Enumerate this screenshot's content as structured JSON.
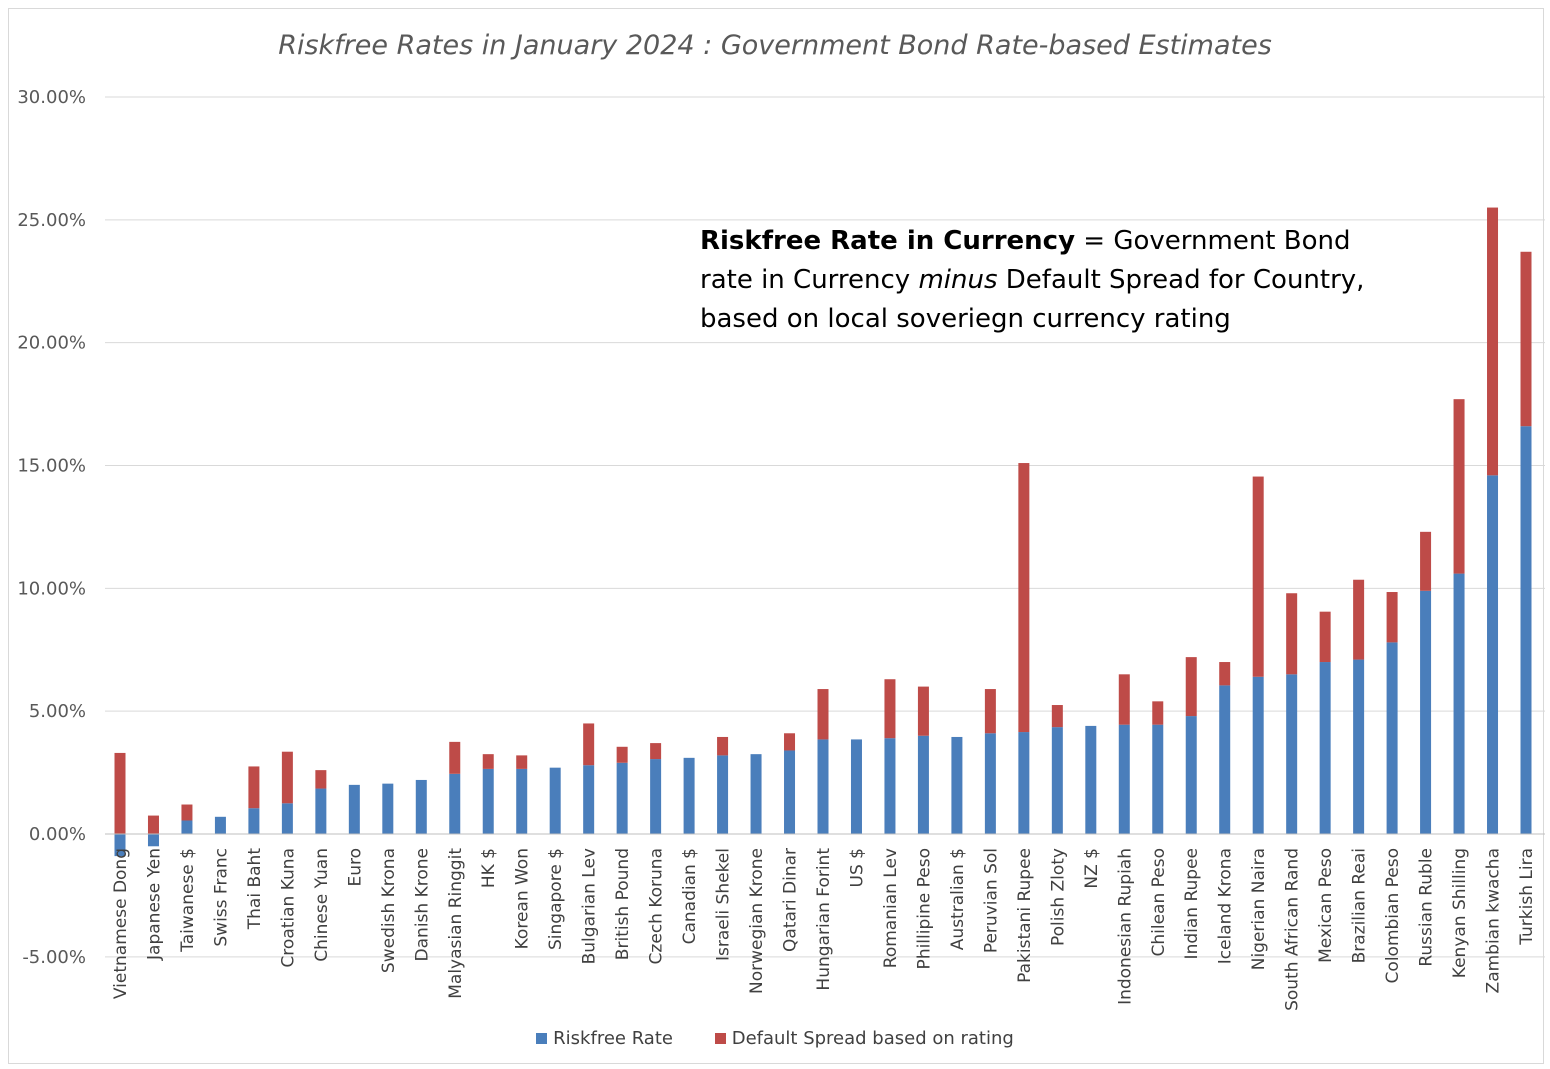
{
  "chart_data": {
    "type": "bar",
    "stacked": true,
    "title": "Riskfree Rates in January 2024 : Government Bond Rate-based Estimates",
    "annotation": {
      "bold": "Riskfree Rate in Currency",
      "part1": " = Government Bond rate in Currency ",
      "italic": "minus",
      "part2": " Default Spread for Country, based on local soveriegn currency rating"
    },
    "ylim": [
      -5,
      30
    ],
    "yticks": [
      -5,
      0,
      5,
      10,
      15,
      20,
      25,
      30
    ],
    "ytick_labels": [
      "-5.00%",
      "0.00%",
      "5.00%",
      "10.00%",
      "15.00%",
      "20.00%",
      "25.00%",
      "30.00%"
    ],
    "grid": true,
    "legend": "bottom",
    "categories": [
      "Vietnamese Dong",
      "Japanese Yen",
      "Taiwanese $",
      "Swiss Franc",
      "Thai Baht",
      "Croatian Kuna",
      "Chinese Yuan",
      "Euro",
      "Swedish Krona",
      "Danish Krone",
      "Malyasian Ringgit",
      "HK $",
      "Korean Won",
      "Singapore $",
      "Bulgarian Lev",
      "British Pound",
      "Czech Koruna",
      "Canadian $",
      "Israeli Shekel",
      "Norwegian Krone",
      "Qatari Dinar",
      "Hungarian Forint",
      "US $",
      "Romanian Lev",
      "Phillipine Peso",
      "Australian $",
      "Peruvian Sol",
      "Pakistani Rupee",
      "Polish Zloty",
      "NZ $",
      "Indonesian Rupiah",
      "Chilean Peso",
      "Indian Rupee",
      "Iceland Krona",
      "Nigerian Naira",
      "South African Rand",
      "Mexican Peso",
      "Brazilian Reai",
      "Colombian Peso",
      "Russian Ruble",
      "Kenyan Shilling",
      "Zambian kwacha",
      "Turkish Lira"
    ],
    "series": [
      {
        "name": "Riskfree Rate",
        "color": "#4a7ebb",
        "values": [
          -0.9,
          -0.5,
          0.55,
          0.7,
          1.05,
          1.25,
          1.85,
          2.0,
          2.05,
          2.2,
          2.45,
          2.65,
          2.65,
          2.7,
          2.8,
          2.9,
          3.05,
          3.1,
          3.2,
          3.25,
          3.4,
          3.85,
          3.85,
          3.9,
          4.0,
          3.95,
          4.1,
          4.15,
          4.35,
          4.4,
          4.45,
          4.45,
          4.8,
          6.05,
          6.4,
          6.5,
          7.0,
          7.1,
          7.8,
          9.9,
          10.6,
          14.6,
          16.6
        ]
      },
      {
        "name": "Default Spread based on rating",
        "color": "#be4b48",
        "values": [
          3.3,
          0.75,
          0.65,
          0.0,
          1.7,
          2.1,
          0.75,
          0.0,
          0.0,
          0.0,
          1.3,
          0.6,
          0.55,
          0.0,
          1.7,
          0.65,
          0.65,
          0.0,
          0.75,
          0.0,
          0.7,
          2.05,
          0.0,
          2.4,
          2.0,
          0.0,
          1.8,
          10.95,
          0.9,
          0.0,
          2.05,
          0.95,
          2.4,
          0.95,
          8.15,
          3.3,
          2.05,
          3.25,
          2.05,
          2.4,
          7.1,
          10.9,
          7.1
        ]
      }
    ]
  }
}
